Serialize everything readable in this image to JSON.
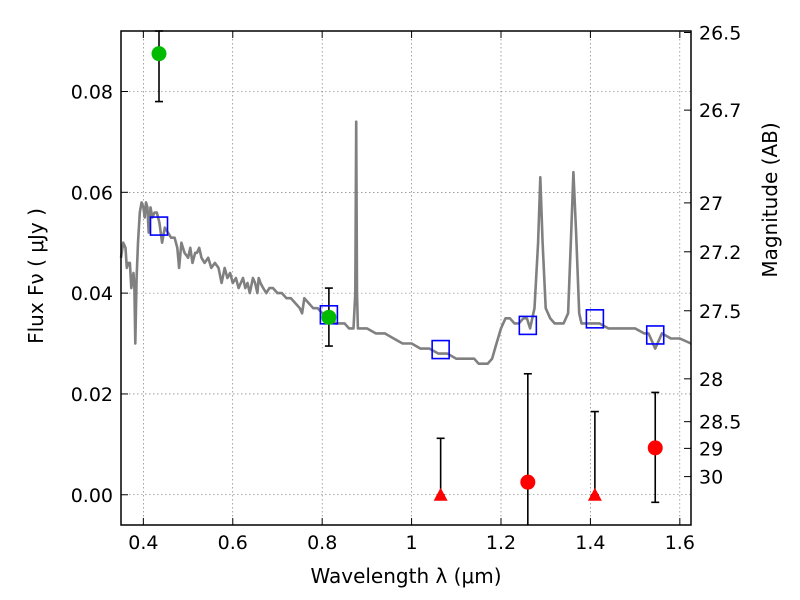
{
  "chart_data": {
    "type": "scatter",
    "title": "",
    "xlabel": "Wavelength  λ (μm)",
    "ylabel": "Flux  Fν  ( μJy )",
    "y2label": "Magnitude (AB)",
    "xlim": [
      0.35,
      1.625
    ],
    "ylim": [
      -0.006,
      0.092
    ],
    "grid": true,
    "x_ticks": [
      0.4,
      0.6,
      0.8,
      1.0,
      1.2,
      1.4,
      1.6
    ],
    "x_tick_labels": [
      "0.4",
      "0.6",
      "0.8",
      "1",
      "1.2",
      "1.4",
      "1.6"
    ],
    "y_ticks": [
      0.0,
      0.02,
      0.04,
      0.06,
      0.08
    ],
    "y_tick_labels": [
      "0.00",
      "0.02",
      "0.04",
      "0.06",
      "0.08"
    ],
    "y2_ticks": [
      {
        "label": "26.5",
        "flux": 0.0917
      },
      {
        "label": "26.7",
        "flux": 0.0763
      },
      {
        "label": "27",
        "flux": 0.0579
      },
      {
        "label": "27.2",
        "flux": 0.0482
      },
      {
        "label": "27.5",
        "flux": 0.0365
      },
      {
        "label": "28",
        "flux": 0.023
      },
      {
        "label": "28.5",
        "flux": 0.0145
      },
      {
        "label": "29",
        "flux": 0.0092
      },
      {
        "label": "30",
        "flux": 0.0036
      }
    ],
    "colors": {
      "template": "#808080",
      "model": "#0000ff",
      "detection": "#00bb00",
      "nondetection": "#ff0000",
      "errorbar": "#000000"
    },
    "series": [
      {
        "name": "template_spectrum",
        "kind": "line",
        "points": [
          [
            0.35,
            0.047
          ],
          [
            0.355,
            0.05
          ],
          [
            0.36,
            0.049
          ],
          [
            0.363,
            0.045
          ],
          [
            0.366,
            0.046
          ],
          [
            0.37,
            0.046
          ],
          [
            0.373,
            0.041
          ],
          [
            0.376,
            0.043
          ],
          [
            0.378,
            0.044
          ],
          [
            0.38,
            0.041
          ],
          [
            0.382,
            0.03
          ],
          [
            0.385,
            0.043
          ],
          [
            0.388,
            0.05
          ],
          [
            0.392,
            0.056
          ],
          [
            0.396,
            0.058
          ],
          [
            0.4,
            0.057
          ],
          [
            0.403,
            0.055
          ],
          [
            0.406,
            0.058
          ],
          [
            0.409,
            0.057
          ],
          [
            0.412,
            0.052
          ],
          [
            0.416,
            0.057
          ],
          [
            0.42,
            0.055
          ],
          [
            0.425,
            0.056
          ],
          [
            0.43,
            0.056
          ],
          [
            0.436,
            0.054
          ],
          [
            0.442,
            0.05
          ],
          [
            0.448,
            0.053
          ],
          [
            0.455,
            0.052
          ],
          [
            0.462,
            0.051
          ],
          [
            0.47,
            0.051
          ],
          [
            0.476,
            0.049
          ],
          [
            0.48,
            0.045
          ],
          [
            0.485,
            0.05
          ],
          [
            0.492,
            0.048
          ],
          [
            0.5,
            0.047
          ],
          [
            0.505,
            0.049
          ],
          [
            0.51,
            0.046
          ],
          [
            0.516,
            0.048
          ],
          [
            0.52,
            0.048
          ],
          [
            0.525,
            0.049
          ],
          [
            0.53,
            0.047
          ],
          [
            0.537,
            0.046
          ],
          [
            0.545,
            0.047
          ],
          [
            0.552,
            0.045
          ],
          [
            0.56,
            0.046
          ],
          [
            0.568,
            0.045
          ],
          [
            0.575,
            0.042
          ],
          [
            0.582,
            0.045
          ],
          [
            0.588,
            0.043
          ],
          [
            0.594,
            0.044
          ],
          [
            0.6,
            0.042
          ],
          [
            0.607,
            0.043
          ],
          [
            0.613,
            0.041
          ],
          [
            0.618,
            0.042
          ],
          [
            0.623,
            0.043
          ],
          [
            0.628,
            0.041
          ],
          [
            0.633,
            0.042
          ],
          [
            0.638,
            0.04
          ],
          [
            0.645,
            0.043
          ],
          [
            0.65,
            0.042
          ],
          [
            0.655,
            0.04
          ],
          [
            0.658,
            0.043
          ],
          [
            0.662,
            0.042
          ],
          [
            0.668,
            0.041
          ],
          [
            0.675,
            0.04
          ],
          [
            0.682,
            0.041
          ],
          [
            0.69,
            0.041
          ],
          [
            0.7,
            0.04
          ],
          [
            0.71,
            0.04
          ],
          [
            0.72,
            0.039
          ],
          [
            0.73,
            0.039
          ],
          [
            0.74,
            0.038
          ],
          [
            0.75,
            0.037
          ],
          [
            0.755,
            0.036
          ],
          [
            0.76,
            0.039
          ],
          [
            0.77,
            0.038
          ],
          [
            0.78,
            0.037
          ],
          [
            0.79,
            0.037
          ],
          [
            0.8,
            0.036
          ],
          [
            0.81,
            0.036
          ],
          [
            0.82,
            0.035
          ],
          [
            0.83,
            0.034
          ],
          [
            0.84,
            0.034
          ],
          [
            0.85,
            0.034
          ],
          [
            0.86,
            0.033
          ],
          [
            0.865,
            0.033
          ],
          [
            0.87,
            0.033
          ],
          [
            0.874,
            0.04
          ],
          [
            0.876,
            0.074
          ],
          [
            0.878,
            0.04
          ],
          [
            0.88,
            0.033
          ],
          [
            0.9,
            0.033
          ],
          [
            0.92,
            0.032
          ],
          [
            0.94,
            0.032
          ],
          [
            0.96,
            0.031
          ],
          [
            0.98,
            0.03
          ],
          [
            1.0,
            0.03
          ],
          [
            1.02,
            0.029
          ],
          [
            1.04,
            0.029
          ],
          [
            1.06,
            0.028
          ],
          [
            1.08,
            0.028
          ],
          [
            1.1,
            0.027
          ],
          [
            1.12,
            0.027
          ],
          [
            1.14,
            0.027
          ],
          [
            1.15,
            0.026
          ],
          [
            1.17,
            0.026
          ],
          [
            1.18,
            0.027
          ],
          [
            1.19,
            0.03
          ],
          [
            1.2,
            0.033
          ],
          [
            1.21,
            0.035
          ],
          [
            1.22,
            0.035
          ],
          [
            1.23,
            0.034
          ],
          [
            1.24,
            0.034
          ],
          [
            1.25,
            0.035
          ],
          [
            1.258,
            0.035
          ],
          [
            1.265,
            0.033
          ],
          [
            1.275,
            0.037
          ],
          [
            1.283,
            0.05
          ],
          [
            1.288,
            0.063
          ],
          [
            1.293,
            0.05
          ],
          [
            1.3,
            0.037
          ],
          [
            1.31,
            0.035
          ],
          [
            1.32,
            0.034
          ],
          [
            1.34,
            0.034
          ],
          [
            1.35,
            0.036
          ],
          [
            1.357,
            0.052
          ],
          [
            1.362,
            0.064
          ],
          [
            1.368,
            0.052
          ],
          [
            1.375,
            0.036
          ],
          [
            1.38,
            0.034
          ],
          [
            1.39,
            0.034
          ],
          [
            1.4,
            0.034
          ],
          [
            1.42,
            0.034
          ],
          [
            1.44,
            0.033
          ],
          [
            1.46,
            0.033
          ],
          [
            1.48,
            0.033
          ],
          [
            1.5,
            0.033
          ],
          [
            1.52,
            0.032
          ],
          [
            1.53,
            0.032
          ],
          [
            1.54,
            0.03
          ],
          [
            1.545,
            0.029
          ],
          [
            1.55,
            0.03
          ],
          [
            1.56,
            0.032
          ],
          [
            1.58,
            0.031
          ],
          [
            1.6,
            0.031
          ],
          [
            1.625,
            0.03
          ]
        ]
      },
      {
        "name": "model_photometry",
        "kind": "square",
        "points": [
          [
            0.435,
            0.0533
          ],
          [
            0.815,
            0.0357
          ],
          [
            1.065,
            0.0288
          ],
          [
            1.26,
            0.0336
          ],
          [
            1.41,
            0.0349
          ],
          [
            1.545,
            0.0317
          ]
        ]
      },
      {
        "name": "detections",
        "kind": "circle",
        "points": [
          {
            "x": 0.435,
            "y": 0.0875,
            "err_low": 0.078,
            "err_high": 0.092
          },
          {
            "x": 0.815,
            "y": 0.0352,
            "err_low": 0.0295,
            "err_high": 0.041
          }
        ]
      },
      {
        "name": "nondetections",
        "kind": "circle",
        "points": [
          {
            "x": 1.26,
            "y": 0.0025,
            "err_low": -0.006,
            "err_high": 0.024
          },
          {
            "x": 1.545,
            "y": 0.0093,
            "err_low": -0.0015,
            "err_high": 0.0203
          }
        ]
      },
      {
        "name": "upper_limits",
        "kind": "triangle",
        "points": [
          {
            "x": 1.065,
            "y": 0.0,
            "err_low": 0.0,
            "err_high": 0.0112
          },
          {
            "x": 1.41,
            "y": 0.0,
            "err_low": 0.0,
            "err_high": 0.0165
          }
        ]
      }
    ]
  }
}
